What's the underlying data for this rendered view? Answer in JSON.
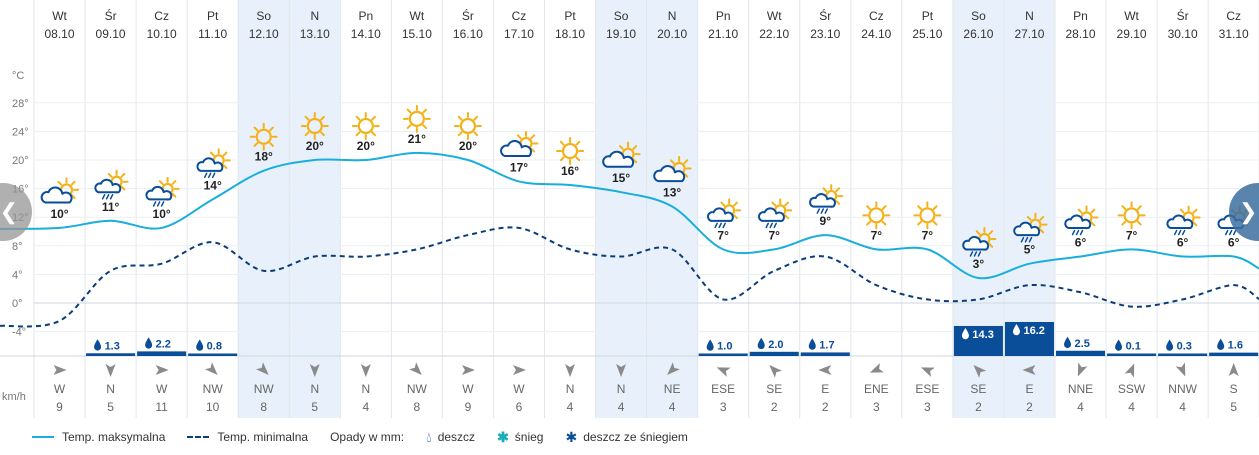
{
  "chart_data": {
    "type": "line",
    "ylabel": "°C",
    "y_ticks": [
      28,
      24,
      20,
      16,
      12,
      8,
      4,
      0,
      -4
    ],
    "ylim": [
      -6,
      32
    ],
    "wind_unit": "km/h",
    "days": [
      {
        "name": "Wt",
        "date": "08.10",
        "weekend": false,
        "icon": "sun-cloud-icon",
        "label": "10°",
        "tmax": 10.5,
        "tmin": -2.5,
        "precip": null,
        "precip_label": "",
        "wind_dir": "W",
        "wind_speed": "9"
      },
      {
        "name": "Śr",
        "date": "09.10",
        "weekend": false,
        "icon": "sun-rain-cloud-icon",
        "label": "11°",
        "tmax": 11.5,
        "tmin": 4.5,
        "precip": 1.3,
        "precip_label": "1.3",
        "wind_dir": "N",
        "wind_speed": "5"
      },
      {
        "name": "Cz",
        "date": "10.10",
        "weekend": false,
        "icon": "sun-rain-cloud-icon",
        "label": "10°",
        "tmax": 10.5,
        "tmin": 5.5,
        "precip": 2.2,
        "precip_label": "2.2",
        "wind_dir": "W",
        "wind_speed": "11"
      },
      {
        "name": "Pt",
        "date": "11.10",
        "weekend": false,
        "icon": "sun-rain-cloud-icon",
        "label": "14°",
        "tmax": 14.5,
        "tmin": 8.5,
        "precip": 0.8,
        "precip_label": "0.8",
        "wind_dir": "NW",
        "wind_speed": "10"
      },
      {
        "name": "So",
        "date": "12.10",
        "weekend": true,
        "icon": "sun-icon",
        "label": "18°",
        "tmax": 18.5,
        "tmin": 4.5,
        "precip": null,
        "precip_label": "",
        "wind_dir": "NW",
        "wind_speed": "8"
      },
      {
        "name": "N",
        "date": "13.10",
        "weekend": true,
        "icon": "sun-icon",
        "label": "20°",
        "tmax": 20.0,
        "tmin": 6.5,
        "precip": null,
        "precip_label": "",
        "wind_dir": "N",
        "wind_speed": "5"
      },
      {
        "name": "Pn",
        "date": "14.10",
        "weekend": false,
        "icon": "sun-icon",
        "label": "20°",
        "tmax": 20.0,
        "tmin": 6.5,
        "precip": null,
        "precip_label": "",
        "wind_dir": "N",
        "wind_speed": "4"
      },
      {
        "name": "Wt",
        "date": "15.10",
        "weekend": false,
        "icon": "sun-icon",
        "label": "21°",
        "tmax": 21.0,
        "tmin": 7.5,
        "precip": null,
        "precip_label": "",
        "wind_dir": "NW",
        "wind_speed": "8"
      },
      {
        "name": "Śr",
        "date": "16.10",
        "weekend": false,
        "icon": "sun-icon",
        "label": "20°",
        "tmax": 20.0,
        "tmin": 9.5,
        "precip": null,
        "precip_label": "",
        "wind_dir": "W",
        "wind_speed": "9"
      },
      {
        "name": "Cz",
        "date": "17.10",
        "weekend": false,
        "icon": "sun-cloud-icon",
        "label": "17°",
        "tmax": 17.0,
        "tmin": 10.5,
        "precip": null,
        "precip_label": "",
        "wind_dir": "W",
        "wind_speed": "6"
      },
      {
        "name": "Pt",
        "date": "18.10",
        "weekend": false,
        "icon": "sun-icon",
        "label": "16°",
        "tmax": 16.5,
        "tmin": 7.5,
        "precip": null,
        "precip_label": "",
        "wind_dir": "N",
        "wind_speed": "4"
      },
      {
        "name": "So",
        "date": "19.10",
        "weekend": true,
        "icon": "sun-cloud-icon",
        "label": "15°",
        "tmax": 15.5,
        "tmin": 6.5,
        "precip": null,
        "precip_label": "",
        "wind_dir": "N",
        "wind_speed": "4"
      },
      {
        "name": "N",
        "date": "20.10",
        "weekend": true,
        "icon": "sun-cloud-icon",
        "label": "13°",
        "tmax": 13.5,
        "tmin": 7.5,
        "precip": null,
        "precip_label": "",
        "wind_dir": "NE",
        "wind_speed": "4"
      },
      {
        "name": "Pn",
        "date": "21.10",
        "weekend": false,
        "icon": "sun-rain-cloud-icon",
        "label": "7°",
        "tmax": 7.5,
        "tmin": 0.5,
        "precip": 1.0,
        "precip_label": "1.0",
        "wind_dir": "ESE",
        "wind_speed": "3"
      },
      {
        "name": "Wt",
        "date": "22.10",
        "weekend": false,
        "icon": "sun-rain-cloud-icon",
        "label": "7°",
        "tmax": 7.5,
        "tmin": 4.5,
        "precip": 2.0,
        "precip_label": "2.0",
        "wind_dir": "SE",
        "wind_speed": "2"
      },
      {
        "name": "Śr",
        "date": "23.10",
        "weekend": false,
        "icon": "sun-rain-cloud-icon",
        "label": "9°",
        "tmax": 9.5,
        "tmin": 6.5,
        "precip": 1.7,
        "precip_label": "1.7",
        "wind_dir": "E",
        "wind_speed": "2"
      },
      {
        "name": "Cz",
        "date": "24.10",
        "weekend": false,
        "icon": "sun-icon",
        "label": "7°",
        "tmax": 7.5,
        "tmin": 2.5,
        "precip": null,
        "precip_label": "",
        "wind_dir": "ENE",
        "wind_speed": "3"
      },
      {
        "name": "Pt",
        "date": "25.10",
        "weekend": false,
        "icon": "sun-icon",
        "label": "7°",
        "tmax": 7.5,
        "tmin": 0.5,
        "precip": null,
        "precip_label": "",
        "wind_dir": "ESE",
        "wind_speed": "3"
      },
      {
        "name": "So",
        "date": "26.10",
        "weekend": true,
        "icon": "sun-rain-cloud-icon",
        "label": "3°",
        "tmax": 3.5,
        "tmin": 0.5,
        "precip": 14.3,
        "precip_label": "14.3",
        "wind_dir": "SE",
        "wind_speed": "2"
      },
      {
        "name": "N",
        "date": "27.10",
        "weekend": true,
        "icon": "sun-rain-cloud-icon",
        "label": "5°",
        "tmax": 5.5,
        "tmin": 2.5,
        "precip": 16.2,
        "precip_label": "16.2",
        "wind_dir": "E",
        "wind_speed": "2"
      },
      {
        "name": "Pn",
        "date": "28.10",
        "weekend": false,
        "icon": "sun-rain-cloud-icon",
        "label": "6°",
        "tmax": 6.5,
        "tmin": 1.5,
        "precip": 2.5,
        "precip_label": "2.5",
        "wind_dir": "NNE",
        "wind_speed": "4"
      },
      {
        "name": "Wt",
        "date": "29.10",
        "weekend": false,
        "icon": "sun-icon",
        "label": "7°",
        "tmax": 7.5,
        "tmin": -0.5,
        "precip": 0.1,
        "precip_label": "0.1",
        "wind_dir": "SSW",
        "wind_speed": "4"
      },
      {
        "name": "Śr",
        "date": "30.10",
        "weekend": false,
        "icon": "sun-rain-cloud-icon",
        "label": "6°",
        "tmax": 6.5,
        "tmin": 0.5,
        "precip": 0.3,
        "precip_label": "0.3",
        "wind_dir": "NNW",
        "wind_speed": "4"
      },
      {
        "name": "Cz",
        "date": "31.10",
        "weekend": false,
        "icon": "sun-rain-cloud-icon",
        "label": "6°",
        "tmax": 6.5,
        "tmin": 2.5,
        "precip": 1.6,
        "precip_label": "1.6",
        "wind_dir": "S",
        "wind_speed": "5"
      }
    ],
    "series": [
      {
        "name": "Temp. maksymalna",
        "key": "tmax",
        "color": "#19aedc",
        "style": "solid"
      },
      {
        "name": "Temp. minimalna",
        "key": "tmin",
        "color": "#0b3d7a",
        "style": "dashed"
      }
    ]
  },
  "legend": {
    "tmax": "Temp. maksymalna",
    "tmin": "Temp. minimalna",
    "precip_title": "Opady w mm:",
    "rain": "deszcz",
    "snow": "śnieg",
    "sleet": "deszcz ze śniegiem"
  },
  "colors": {
    "weekend_bg": "#e8f1fb",
    "precip_bar": "#0a4d99",
    "sun": "#f4b21a",
    "cloud_stroke": "#0a4d99",
    "wind_arrow": "#8a8a8a"
  },
  "nav": {
    "prev_icon": "chevron-left-icon",
    "next_icon": "chevron-right-icon"
  }
}
